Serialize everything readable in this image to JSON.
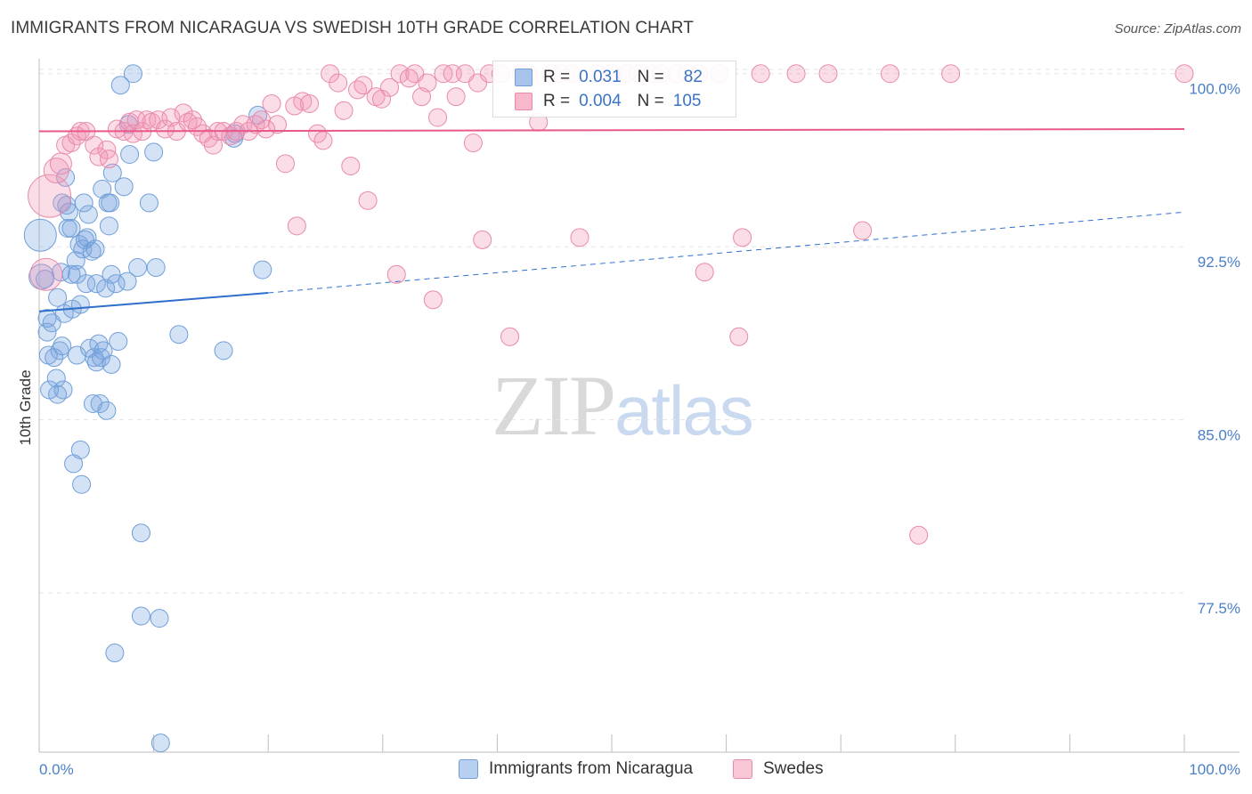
{
  "title": "IMMIGRANTS FROM NICARAGUA VS SWEDISH 10TH GRADE CORRELATION CHART",
  "source": "Source: ZipAtlas.com",
  "watermark": {
    "zip": "ZIP",
    "atlas": "atlas"
  },
  "legend_top": {
    "rows": [
      {
        "r_label": "R =",
        "r_value": "0.031",
        "n_label": "N =",
        "n_value": "82",
        "color": "#a9c4ec",
        "border": "#6f9fd8"
      },
      {
        "r_label": "R =",
        "r_value": "0.004",
        "n_label": "N =",
        "n_value": "105",
        "color": "#f7b8cb",
        "border": "#e98aa8"
      }
    ]
  },
  "legend_bottom": [
    {
      "label": "Immigrants from Nicaragua",
      "color": "#b7cff0",
      "border": "#6f9fd8"
    },
    {
      "label": "Swedes",
      "color": "#f9c6d6",
      "border": "#e98aa8"
    }
  ],
  "colors": {
    "blue_fill": "rgba(120,164,224,0.32)",
    "blue_stroke": "#6f9fd8",
    "blue_line": "#2f6fcc",
    "pink_fill": "rgba(242,150,182,0.32)",
    "pink_stroke": "#e98aa8",
    "pink_line": "#e8588a",
    "grid": "#e3e3e3",
    "axis": "#bdbdbd"
  },
  "chart_data": {
    "type": "scatter",
    "title": "IMMIGRANTS FROM NICARAGUA VS SWEDISH 10TH GRADE CORRELATION CHART",
    "xlabel": "",
    "ylabel": "10th Grade",
    "xlim": [
      0,
      100
    ],
    "ylim": [
      70.6,
      100.8
    ],
    "x_tick_labels": [
      "0.0%",
      "100.0%"
    ],
    "y_ticks": [
      77.5,
      85.0,
      92.5,
      100.0
    ],
    "y_tick_labels": [
      "77.5%",
      "85.0%",
      "92.5%",
      "100.0%"
    ],
    "grid": true,
    "series": [
      {
        "name": "Immigrants from Nicaragua",
        "R": 0.031,
        "N": 82,
        "trend": {
          "x0": 0,
          "y0": 89.7,
          "x1": 20,
          "y1": 90.5,
          "dashed_to_x": 100,
          "dashed_to_y": 94.0
        },
        "points": [
          [
            0.1,
            93.0,
            18
          ],
          [
            0.2,
            91.2,
            14
          ],
          [
            0.5,
            91.1,
            10
          ],
          [
            0.7,
            89.4,
            10
          ],
          [
            0.7,
            88.8,
            10
          ],
          [
            0.8,
            87.8,
            10
          ],
          [
            0.9,
            86.3,
            10
          ],
          [
            1.1,
            89.2,
            10
          ],
          [
            1.3,
            87.7,
            10
          ],
          [
            1.5,
            86.8,
            10
          ],
          [
            1.6,
            86.1,
            10
          ],
          [
            1.6,
            90.3,
            10
          ],
          [
            1.8,
            88.0,
            10
          ],
          [
            1.9,
            91.4,
            10
          ],
          [
            2.0,
            94.4,
            10
          ],
          [
            2.0,
            88.2,
            10
          ],
          [
            2.1,
            86.3,
            10
          ],
          [
            2.2,
            89.6,
            10
          ],
          [
            2.3,
            95.5,
            10
          ],
          [
            2.4,
            94.3,
            10
          ],
          [
            2.5,
            93.3,
            10
          ],
          [
            2.6,
            94.0,
            10
          ],
          [
            2.8,
            93.3,
            10
          ],
          [
            2.8,
            91.3,
            10
          ],
          [
            2.9,
            89.8,
            10
          ],
          [
            3.0,
            83.1,
            10
          ],
          [
            3.2,
            91.9,
            10
          ],
          [
            3.3,
            91.3,
            10
          ],
          [
            3.3,
            87.8,
            10
          ],
          [
            3.5,
            92.6,
            10
          ],
          [
            3.6,
            90.0,
            10
          ],
          [
            3.6,
            83.7,
            10
          ],
          [
            3.7,
            82.2,
            10
          ],
          [
            3.8,
            92.4,
            10
          ],
          [
            3.9,
            94.4,
            10
          ],
          [
            4.0,
            92.8,
            10
          ],
          [
            4.1,
            90.9,
            10
          ],
          [
            4.2,
            92.9,
            10
          ],
          [
            4.3,
            93.9,
            10
          ],
          [
            4.4,
            88.1,
            10
          ],
          [
            4.6,
            92.3,
            10
          ],
          [
            4.7,
            85.7,
            10
          ],
          [
            4.8,
            87.7,
            10
          ],
          [
            4.9,
            92.4,
            10
          ],
          [
            5.0,
            90.9,
            10
          ],
          [
            5.0,
            87.5,
            10
          ],
          [
            5.2,
            88.3,
            10
          ],
          [
            5.3,
            85.7,
            10
          ],
          [
            5.4,
            87.7,
            10
          ],
          [
            5.5,
            95.0,
            10
          ],
          [
            5.6,
            88.0,
            10
          ],
          [
            5.8,
            90.7,
            10
          ],
          [
            5.9,
            85.4,
            10
          ],
          [
            6.0,
            94.4,
            10
          ],
          [
            6.1,
            93.4,
            10
          ],
          [
            6.2,
            94.4,
            10
          ],
          [
            6.3,
            87.4,
            10
          ],
          [
            6.3,
            91.3,
            10
          ],
          [
            6.4,
            95.7,
            10
          ],
          [
            6.6,
            74.9,
            10
          ],
          [
            6.7,
            90.9,
            10
          ],
          [
            6.9,
            88.4,
            10
          ],
          [
            7.1,
            99.5,
            10
          ],
          [
            7.4,
            95.1,
            10
          ],
          [
            7.7,
            91.0,
            10
          ],
          [
            7.8,
            97.8,
            10
          ],
          [
            7.9,
            96.5,
            10
          ],
          [
            8.2,
            100.0,
            10
          ],
          [
            8.6,
            91.6,
            10
          ],
          [
            8.9,
            80.1,
            10
          ],
          [
            8.9,
            76.5,
            10
          ],
          [
            9.6,
            94.4,
            10
          ],
          [
            10.0,
            96.6,
            10
          ],
          [
            10.2,
            91.6,
            10
          ],
          [
            10.5,
            76.4,
            10
          ],
          [
            10.6,
            71.0,
            10
          ],
          [
            12.2,
            88.7,
            10
          ],
          [
            16.1,
            88.0,
            10
          ],
          [
            17.0,
            97.2,
            10
          ],
          [
            17.1,
            97.4,
            10
          ],
          [
            19.1,
            98.2,
            10
          ],
          [
            19.5,
            91.5,
            10
          ]
        ]
      },
      {
        "name": "Swedes",
        "R": 0.004,
        "N": 105,
        "trend": {
          "x0": 0,
          "y0": 97.5,
          "x1": 100,
          "y1": 97.6
        },
        "points": [
          [
            0.6,
            91.3,
            18
          ],
          [
            0.9,
            94.7,
            24
          ],
          [
            1.5,
            95.8,
            14
          ],
          [
            1.9,
            96.1,
            12
          ],
          [
            2.3,
            96.9,
            10
          ],
          [
            2.8,
            97.0,
            10
          ],
          [
            3.3,
            97.3,
            10
          ],
          [
            3.6,
            97.5,
            10
          ],
          [
            4.1,
            97.5,
            10
          ],
          [
            4.8,
            96.9,
            10
          ],
          [
            5.2,
            96.4,
            10
          ],
          [
            5.9,
            96.7,
            10
          ],
          [
            6.1,
            96.3,
            10
          ],
          [
            6.8,
            97.6,
            10
          ],
          [
            7.4,
            97.5,
            10
          ],
          [
            7.9,
            97.9,
            10
          ],
          [
            8.2,
            97.4,
            10
          ],
          [
            8.5,
            98.0,
            10
          ],
          [
            9.0,
            97.5,
            10
          ],
          [
            9.4,
            98.0,
            10
          ],
          [
            9.8,
            97.9,
            10
          ],
          [
            10.4,
            98.0,
            10
          ],
          [
            11.0,
            97.6,
            10
          ],
          [
            11.5,
            98.1,
            10
          ],
          [
            12.0,
            97.5,
            10
          ],
          [
            12.6,
            98.3,
            10
          ],
          [
            13.0,
            97.9,
            10
          ],
          [
            13.4,
            98.0,
            10
          ],
          [
            13.8,
            97.7,
            10
          ],
          [
            14.3,
            97.4,
            10
          ],
          [
            14.8,
            97.2,
            10
          ],
          [
            15.2,
            96.9,
            10
          ],
          [
            15.6,
            97.5,
            10
          ],
          [
            16.1,
            97.5,
            10
          ],
          [
            16.7,
            97.3,
            10
          ],
          [
            17.2,
            97.5,
            10
          ],
          [
            17.8,
            97.8,
            10
          ],
          [
            18.3,
            97.5,
            10
          ],
          [
            18.9,
            97.8,
            10
          ],
          [
            19.4,
            98.0,
            10
          ],
          [
            19.8,
            97.6,
            10
          ],
          [
            20.3,
            98.7,
            10
          ],
          [
            20.8,
            97.8,
            10
          ],
          [
            21.5,
            96.1,
            10
          ],
          [
            22.3,
            98.6,
            10
          ],
          [
            22.5,
            93.4,
            10
          ],
          [
            23.0,
            98.8,
            10
          ],
          [
            23.6,
            98.7,
            10
          ],
          [
            24.3,
            97.4,
            10
          ],
          [
            24.8,
            97.1,
            10
          ],
          [
            25.4,
            100.0,
            10
          ],
          [
            26.1,
            99.6,
            10
          ],
          [
            26.6,
            98.4,
            10
          ],
          [
            27.2,
            96.0,
            10
          ],
          [
            27.8,
            99.3,
            10
          ],
          [
            28.3,
            99.5,
            10
          ],
          [
            28.7,
            94.5,
            10
          ],
          [
            29.4,
            99.0,
            10
          ],
          [
            29.9,
            98.9,
            10
          ],
          [
            30.6,
            99.4,
            10
          ],
          [
            31.2,
            91.3,
            10
          ],
          [
            31.5,
            100.0,
            10
          ],
          [
            32.3,
            99.8,
            10
          ],
          [
            32.8,
            100.0,
            10
          ],
          [
            33.4,
            99.0,
            10
          ],
          [
            33.9,
            99.6,
            10
          ],
          [
            34.4,
            90.2,
            10
          ],
          [
            34.8,
            98.1,
            10
          ],
          [
            35.3,
            100.0,
            10
          ],
          [
            36.1,
            100.0,
            10
          ],
          [
            36.4,
            99.0,
            10
          ],
          [
            37.2,
            100.0,
            10
          ],
          [
            37.9,
            97.0,
            10
          ],
          [
            38.3,
            99.6,
            10
          ],
          [
            38.7,
            92.8,
            10
          ],
          [
            39.3,
            100.0,
            10
          ],
          [
            40.3,
            100.0,
            10
          ],
          [
            41.1,
            88.6,
            10
          ],
          [
            42.1,
            100.0,
            10
          ],
          [
            42.7,
            100.0,
            10
          ],
          [
            43.6,
            97.9,
            10
          ],
          [
            44.7,
            100.0,
            10
          ],
          [
            45.5,
            100.0,
            10
          ],
          [
            46.5,
            100.0,
            10
          ],
          [
            47.2,
            92.9,
            10
          ],
          [
            48.7,
            100.0,
            10
          ],
          [
            50.0,
            100.0,
            10
          ],
          [
            51.3,
            100.0,
            10
          ],
          [
            52.3,
            100.0,
            10
          ],
          [
            53.6,
            100.0,
            10
          ],
          [
            54.3,
            100.0,
            10
          ],
          [
            55.7,
            100.0,
            10
          ],
          [
            56.6,
            100.0,
            10
          ],
          [
            57.6,
            100.0,
            10
          ],
          [
            58.1,
            91.4,
            10
          ],
          [
            59.4,
            100.0,
            10
          ],
          [
            61.1,
            88.6,
            10
          ],
          [
            61.4,
            92.9,
            10
          ],
          [
            63.0,
            100.0,
            10
          ],
          [
            66.1,
            100.0,
            10
          ],
          [
            68.9,
            100.0,
            10
          ],
          [
            71.9,
            93.2,
            10
          ],
          [
            74.3,
            100.0,
            10
          ],
          [
            76.8,
            80.0,
            10
          ],
          [
            79.6,
            100.0,
            10
          ],
          [
            100.0,
            100.0,
            10
          ]
        ]
      }
    ]
  }
}
